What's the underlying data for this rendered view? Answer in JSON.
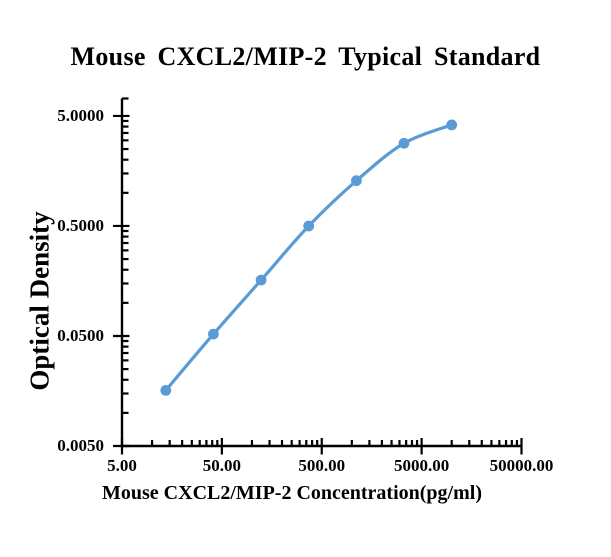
{
  "chart_data": {
    "type": "line",
    "title": "Mouse CXCL2/MIP-2 Typical Standard",
    "xlabel": "Mouse CXCL2/MIP-2 Concentration(pg/ml)",
    "ylabel": "Optical Density",
    "x_scale": "log",
    "y_scale": "log",
    "grid": false,
    "legend": false,
    "background_color": "#ffffff",
    "axis_color": "#000000",
    "x_range": [
      5,
      50000
    ],
    "y_range": [
      0.005,
      7.2
    ],
    "x_ticks": [
      {
        "value": 5,
        "label": "5.00"
      },
      {
        "value": 50,
        "label": "50.00"
      },
      {
        "value": 500,
        "label": "500.00"
      },
      {
        "value": 5000,
        "label": "5000.00"
      },
      {
        "value": 50000,
        "label": "50000.00"
      }
    ],
    "y_ticks": [
      {
        "value": 5,
        "label": "5.0000"
      },
      {
        "value": 0.5,
        "label": "0.5000"
      },
      {
        "value": 0.05,
        "label": "0.0500"
      },
      {
        "value": 0.005,
        "label": "0.0050"
      }
    ],
    "series": [
      {
        "name": "Typical Standard",
        "color": "#5B9BD5",
        "marker": "circle",
        "smooth": true,
        "points": [
          {
            "x": 13.72,
            "y": 0.016
          },
          {
            "x": 41.15,
            "y": 0.052
          },
          {
            "x": 123.46,
            "y": 0.161
          },
          {
            "x": 370.37,
            "y": 0.499
          },
          {
            "x": 1111.11,
            "y": 1.29
          },
          {
            "x": 3333.33,
            "y": 2.82
          },
          {
            "x": 10000,
            "y": 4.14
          }
        ]
      }
    ]
  }
}
